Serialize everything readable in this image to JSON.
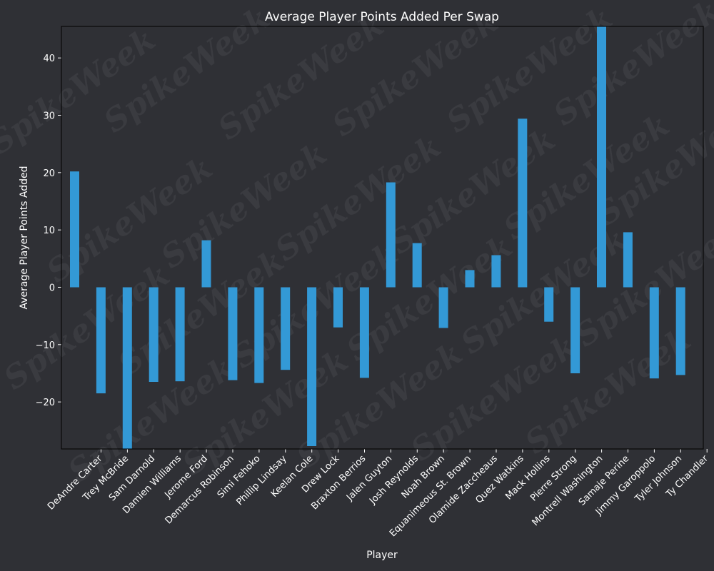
{
  "chart_data": {
    "type": "bar",
    "title": "Average Player Points Added Per Swap",
    "xlabel": "Player",
    "ylabel": "Average Player Points Added",
    "categories": [
      "DeAndre Carter",
      "Trey McBride",
      "Sam Darnold",
      "Damien Williams",
      "Jerome Ford",
      "Demarcus Robinson",
      "Simi Fehoko",
      "Phillip Lindsay",
      "Keelan Cole",
      "Drew Lock",
      "Braxton Berrios",
      "Jalen Guyton",
      "Josh Reynolds",
      "Noah Brown",
      "Equanimeous St. Brown",
      "Olamide Zaccheaus",
      "Quez Watkins",
      "Mack Hollins",
      "Pierre Strong",
      "Montrell Washington",
      "Samaje Perine",
      "Jimmy Garoppolo",
      "Tyler Johnson",
      "Ty Chandler"
    ],
    "values": [
      20.2,
      -18.5,
      -28.5,
      -16.5,
      -16.4,
      8.2,
      -16.2,
      -16.7,
      -14.4,
      -27.7,
      -7.0,
      -15.8,
      18.3,
      7.7,
      -7.1,
      3.0,
      5.6,
      29.4,
      -6.0,
      -15.0,
      46.0,
      9.6,
      -15.9,
      -15.3
    ],
    "ylim": [
      -28.2,
      45.5
    ],
    "yticks": [
      -20,
      -10,
      0,
      10,
      20,
      30,
      40
    ],
    "grid": false,
    "legend": "none",
    "colors": {
      "bar": "#3399d6",
      "background": "#2f3035",
      "text": "#ffffff",
      "watermark": "#3a3b40"
    },
    "watermark": "SpikeWeek"
  }
}
